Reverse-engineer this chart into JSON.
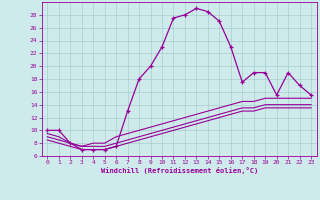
{
  "xlabel": "Windchill (Refroidissement éolien,°C)",
  "background_color": "#ceeaea",
  "line_color": "#990099",
  "xlim": [
    -0.5,
    23.5
  ],
  "ylim": [
    6,
    30
  ],
  "yticks": [
    6,
    8,
    10,
    12,
    14,
    16,
    18,
    20,
    22,
    24,
    26,
    28
  ],
  "xticks": [
    0,
    1,
    2,
    3,
    4,
    5,
    6,
    7,
    8,
    9,
    10,
    11,
    12,
    13,
    14,
    15,
    16,
    17,
    18,
    19,
    20,
    21,
    22,
    23
  ],
  "series1_x": [
    0,
    1,
    2,
    3,
    4,
    5,
    6,
    7,
    8,
    9,
    10,
    11,
    12,
    13,
    14,
    15,
    16,
    17,
    18,
    19,
    20,
    21,
    22,
    23
  ],
  "series1_y": [
    10,
    10,
    8,
    7,
    7,
    7,
    7.5,
    13,
    18,
    20,
    23,
    27.5,
    28,
    29,
    28.5,
    27,
    23,
    17.5,
    19,
    19,
    15.5,
    19,
    17,
    15.5
  ],
  "series2_x": [
    0,
    1,
    2,
    3,
    4,
    5,
    6,
    7,
    8,
    9,
    10,
    11,
    12,
    13,
    14,
    15,
    16,
    17,
    18,
    19,
    20,
    21,
    22,
    23
  ],
  "series2_y": [
    9.5,
    9,
    8,
    7.5,
    8,
    8,
    9,
    9.5,
    10,
    10.5,
    11,
    11.5,
    12,
    12.5,
    13,
    13.5,
    14,
    14.5,
    14.5,
    15,
    15,
    15,
    15,
    15
  ],
  "series3_x": [
    0,
    1,
    2,
    3,
    4,
    5,
    6,
    7,
    8,
    9,
    10,
    11,
    12,
    13,
    14,
    15,
    16,
    17,
    18,
    19,
    20,
    21,
    22,
    23
  ],
  "series3_y": [
    9.0,
    8.5,
    8.0,
    7.5,
    7.5,
    7.5,
    8.0,
    8.5,
    9.0,
    9.5,
    10.0,
    10.5,
    11.0,
    11.5,
    12.0,
    12.5,
    13.0,
    13.5,
    13.5,
    14.0,
    14.0,
    14.0,
    14.0,
    14.0
  ],
  "series4_x": [
    0,
    1,
    2,
    3,
    4,
    5,
    6,
    7,
    8,
    9,
    10,
    11,
    12,
    13,
    14,
    15,
    16,
    17,
    18,
    19,
    20,
    21,
    22,
    23
  ],
  "series4_y": [
    8.5,
    8.0,
    7.5,
    7.0,
    7.0,
    7.0,
    7.5,
    8.0,
    8.5,
    9.0,
    9.5,
    10.0,
    10.5,
    11.0,
    11.5,
    12.0,
    12.5,
    13.0,
    13.0,
    13.5,
    13.5,
    13.5,
    13.5,
    13.5
  ]
}
